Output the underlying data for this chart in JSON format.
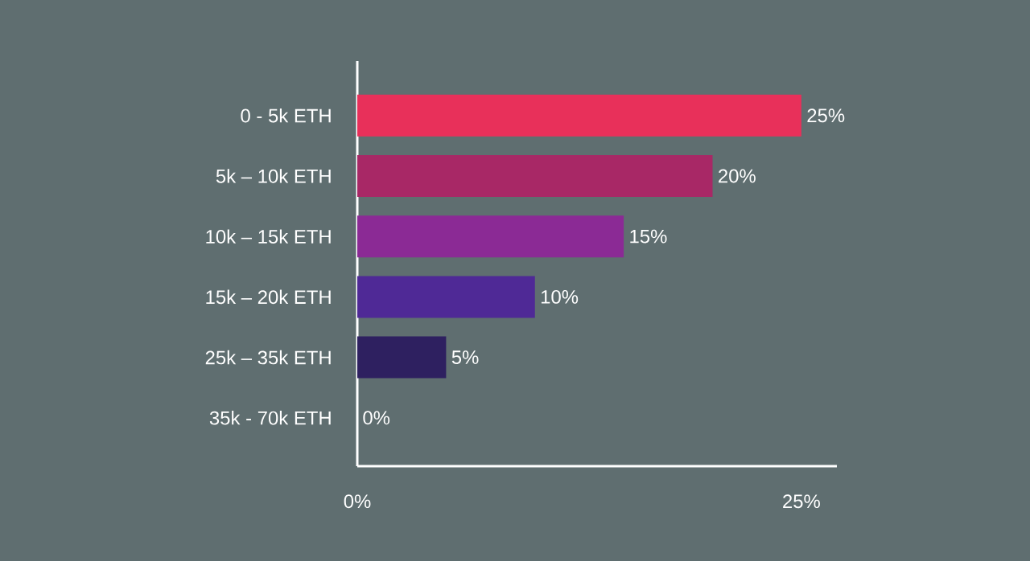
{
  "chart_data": {
    "type": "bar",
    "orientation": "horizontal",
    "categories": [
      "0 - 5k ETH",
      "5k – 10k ETH",
      "10k – 15k ETH",
      "15k – 20k ETH",
      "25k – 35k ETH",
      "35k - 70k ETH"
    ],
    "values": [
      25,
      20,
      15,
      10,
      5,
      0
    ],
    "value_labels": [
      "25%",
      "20%",
      "15%",
      "10%",
      "5%",
      "0%"
    ],
    "colors": [
      "#e8305a",
      "#a82866",
      "#8b2a95",
      "#4f2996",
      "#2e2060",
      "#2e2060"
    ],
    "xlim": [
      0,
      27
    ],
    "xticks": [
      {
        "value": 0,
        "label": "0%"
      },
      {
        "value": 25,
        "label": "25%"
      }
    ],
    "grid": false
  }
}
